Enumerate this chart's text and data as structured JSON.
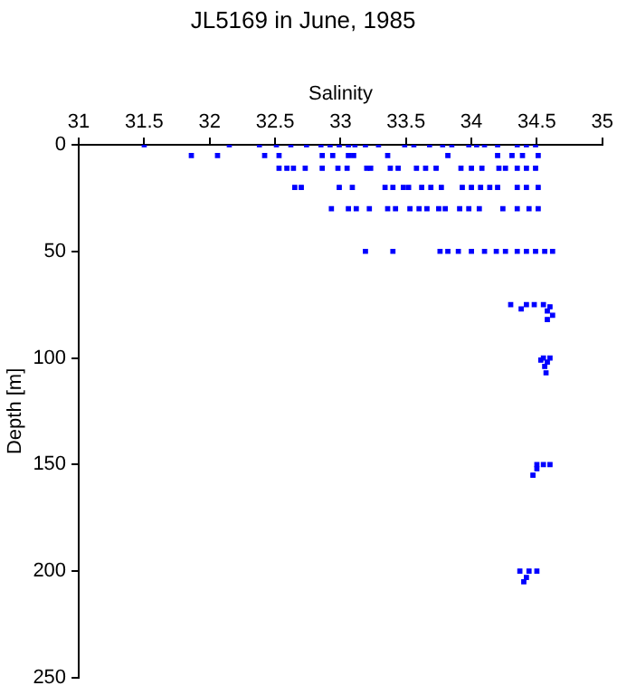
{
  "chart_data": {
    "type": "scatter",
    "title": "JL5169 in June, 1985",
    "xlabel": "Salinity",
    "ylabel": "Depth [m]",
    "xlim": [
      31,
      35
    ],
    "xticks": [
      31,
      31.5,
      32,
      32.5,
      33,
      33.5,
      34,
      34.5,
      35
    ],
    "ylim": [
      250,
      0
    ],
    "yticks": [
      0,
      50,
      100,
      150,
      200,
      250
    ],
    "grid": false,
    "legend": false,
    "marker": "square",
    "series": [
      {
        "color": "#0000ff",
        "x": [
          31.5,
          32.15,
          32.38,
          32.51,
          32.62,
          32.74,
          32.85,
          32.92,
          32.99,
          33.06,
          33.11,
          33.19,
          33.29,
          33.49,
          33.56,
          33.68,
          33.78,
          33.85,
          33.98,
          34.04,
          34.1,
          34.2,
          34.35,
          34.42,
          34.49,
          31.86,
          32.06,
          32.42,
          32.53,
          32.86,
          32.94,
          33.06,
          33.1,
          33.36,
          33.82,
          34.2,
          34.31,
          34.39,
          34.51,
          32.53,
          32.59,
          32.64,
          32.73,
          32.86,
          32.98,
          33.05,
          33.2,
          33.23,
          33.38,
          33.44,
          33.58,
          33.65,
          33.73,
          33.92,
          34,
          34.08,
          34.21,
          34.26,
          34.35,
          34.42,
          34.49,
          32.65,
          32.7,
          32.99,
          33.09,
          33.34,
          33.4,
          33.48,
          33.52,
          33.62,
          33.69,
          33.77,
          33.93,
          34,
          34.07,
          34.14,
          34.2,
          34.35,
          34.42,
          34.51,
          32.93,
          33.06,
          33.12,
          33.22,
          33.36,
          33.42,
          33.53,
          33.6,
          33.66,
          33.75,
          33.8,
          33.91,
          33.98,
          34.06,
          34.24,
          34.35,
          34.44,
          34.51,
          33.19,
          33.4,
          33.76,
          33.82,
          33.9,
          34,
          34.1,
          34.19,
          34.26,
          34.35,
          34.42,
          34.49,
          34.56,
          34.62,
          34.3,
          34.38,
          34.42,
          34.48,
          34.55,
          34.6,
          34.58,
          34.62,
          34.58,
          34.55,
          34.6,
          34.53,
          34.58,
          34.56,
          34.57,
          34.5,
          34.55,
          34.6,
          34.5,
          34.47,
          34.37,
          34.44,
          34.5,
          34.42,
          34.4
        ],
        "values": [
          0,
          0,
          0,
          0,
          0,
          0,
          0,
          0,
          0,
          0,
          0,
          0,
          0,
          0,
          0,
          0,
          0,
          0,
          0,
          0,
          0,
          0,
          0,
          0,
          0,
          5,
          5,
          5,
          5,
          5,
          5,
          5,
          5,
          5,
          5,
          5,
          5,
          5,
          5,
          11,
          11,
          11,
          11,
          11,
          11,
          11,
          11,
          11,
          11,
          11,
          11,
          11,
          11,
          11,
          11,
          11,
          11,
          11,
          11,
          11,
          11,
          20,
          20,
          20,
          20,
          20,
          20,
          20,
          20,
          20,
          20,
          20,
          20,
          20,
          20,
          20,
          20,
          20,
          20,
          20,
          30,
          30,
          30,
          30,
          30,
          30,
          30,
          30,
          30,
          30,
          30,
          30,
          30,
          30,
          30,
          30,
          30,
          30,
          50,
          50,
          50,
          50,
          50,
          50,
          50,
          50,
          50,
          50,
          50,
          50,
          50,
          50,
          75,
          77,
          75,
          75,
          75,
          76,
          78,
          80,
          82,
          100,
          100,
          101,
          102,
          104,
          107,
          150,
          150,
          150,
          152,
          155,
          200,
          200,
          200,
          203,
          205
        ]
      }
    ]
  }
}
